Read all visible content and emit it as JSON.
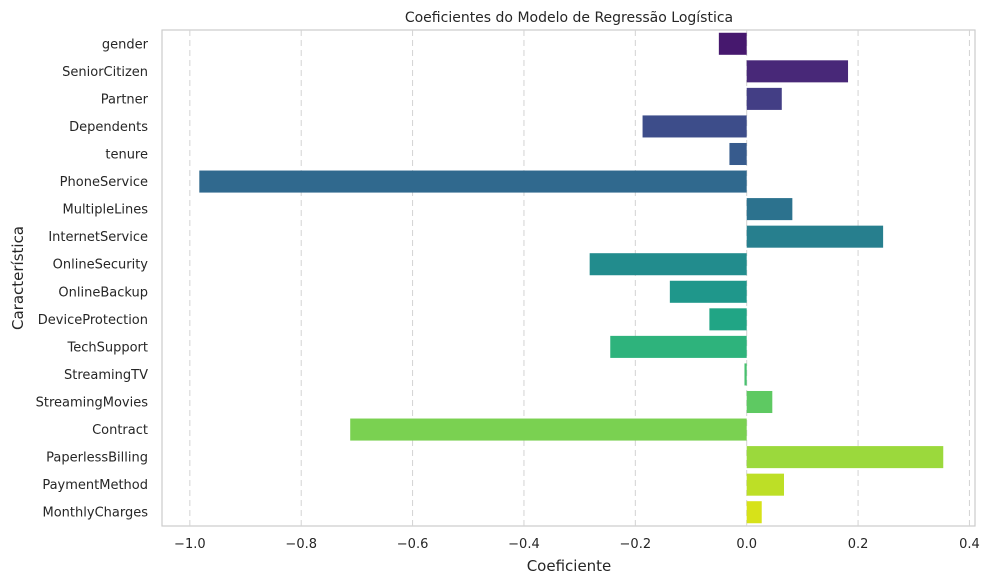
{
  "chart_data": {
    "type": "bar",
    "orientation": "horizontal",
    "title": "Coeficientes do Modelo de Regressão Logística",
    "xlabel": "Coeficiente",
    "ylabel": "Característica",
    "xlim": [
      -1.05,
      0.41
    ],
    "x_ticks": [
      -1.0,
      -0.8,
      -0.6,
      -0.4,
      -0.2,
      0.0,
      0.2,
      0.4
    ],
    "x_tick_labels": [
      "−1.0",
      "−0.8",
      "−0.6",
      "−0.4",
      "−0.2",
      "0.0",
      "0.2",
      "0.4"
    ],
    "grid": "vertical dashed",
    "categories": [
      "gender",
      "SeniorCitizen",
      "Partner",
      "Dependents",
      "tenure",
      "PhoneService",
      "MultipleLines",
      "InternetService",
      "OnlineSecurity",
      "OnlineBackup",
      "DeviceProtection",
      "TechSupport",
      "StreamingTV",
      "StreamingMovies",
      "Contract",
      "PaperlessBilling",
      "PaymentMethod",
      "MonthlyCharges"
    ],
    "values": [
      -0.05,
      0.182,
      0.063,
      -0.187,
      -0.031,
      -0.983,
      0.082,
      0.245,
      -0.282,
      -0.138,
      -0.067,
      -0.245,
      -0.004,
      0.046,
      -0.712,
      0.353,
      0.067,
      0.027
    ],
    "colors": [
      "#46186e",
      "#482878",
      "#433e85",
      "#3d4d8a",
      "#375b8d",
      "#30698e",
      "#2c728e",
      "#277f8e",
      "#228c8d",
      "#1f978b",
      "#21a585",
      "#2eb37c",
      "#48c16e",
      "#5ec962",
      "#7ad151",
      "#9bd93c",
      "#bddf26",
      "#d7e219"
    ]
  }
}
